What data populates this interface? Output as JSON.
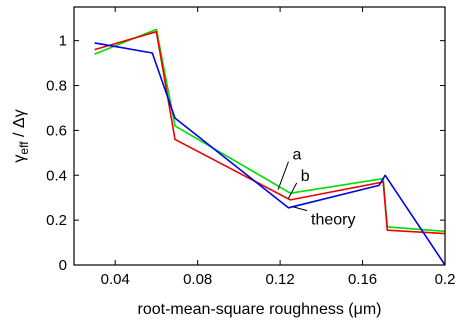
{
  "chart_data": {
    "type": "line",
    "xlabel": "root-mean-square roughness (μm)",
    "ylabel": "γ",
    "ylabel_sub": "eff",
    "ylabel_rest": " / Δγ",
    "xlim": [
      0.02,
      0.2
    ],
    "ylim": [
      0,
      1.15
    ],
    "xticks": [
      0.04,
      0.08,
      0.12,
      0.16,
      0.2
    ],
    "xtick_labels": [
      "0.04",
      "0.08",
      "0.12",
      "0.16",
      "0.2"
    ],
    "yticks": [
      0,
      0.2,
      0.4,
      0.6,
      0.8,
      1.0
    ],
    "ytick_labels": [
      "0",
      "0.2",
      "0.4",
      "0.6",
      "0.8",
      "1"
    ],
    "grid": false,
    "series": [
      {
        "name": "a",
        "color": "#00dd00",
        "x": [
          0.03,
          0.06,
          0.069,
          0.125,
          0.17,
          0.172,
          0.2
        ],
        "y": [
          0.94,
          1.05,
          0.62,
          0.32,
          0.385,
          0.17,
          0.15
        ]
      },
      {
        "name": "b",
        "color": "#ee0000",
        "x": [
          0.03,
          0.06,
          0.069,
          0.125,
          0.17,
          0.172,
          0.2
        ],
        "y": [
          0.96,
          1.04,
          0.56,
          0.29,
          0.37,
          0.155,
          0.14
        ]
      },
      {
        "name": "theory",
        "color": "#0000ee",
        "x": [
          0.03,
          0.058,
          0.069,
          0.124,
          0.168,
          0.171,
          0.2
        ],
        "y": [
          0.99,
          0.945,
          0.655,
          0.255,
          0.355,
          0.4,
          0.0
        ]
      }
    ],
    "annotations": [
      {
        "text": "a",
        "series": "a",
        "at_x": 0.119,
        "at_y": 0.335,
        "text_x": 0.126,
        "text_y": 0.47
      },
      {
        "text": "b",
        "series": "b",
        "at_x": 0.124,
        "at_y": 0.296,
        "text_x": 0.13,
        "text_y": 0.375
      },
      {
        "text": "theory",
        "series": "theory",
        "at_x": 0.126,
        "at_y": 0.26,
        "text_x": 0.135,
        "text_y": 0.18
      }
    ]
  }
}
